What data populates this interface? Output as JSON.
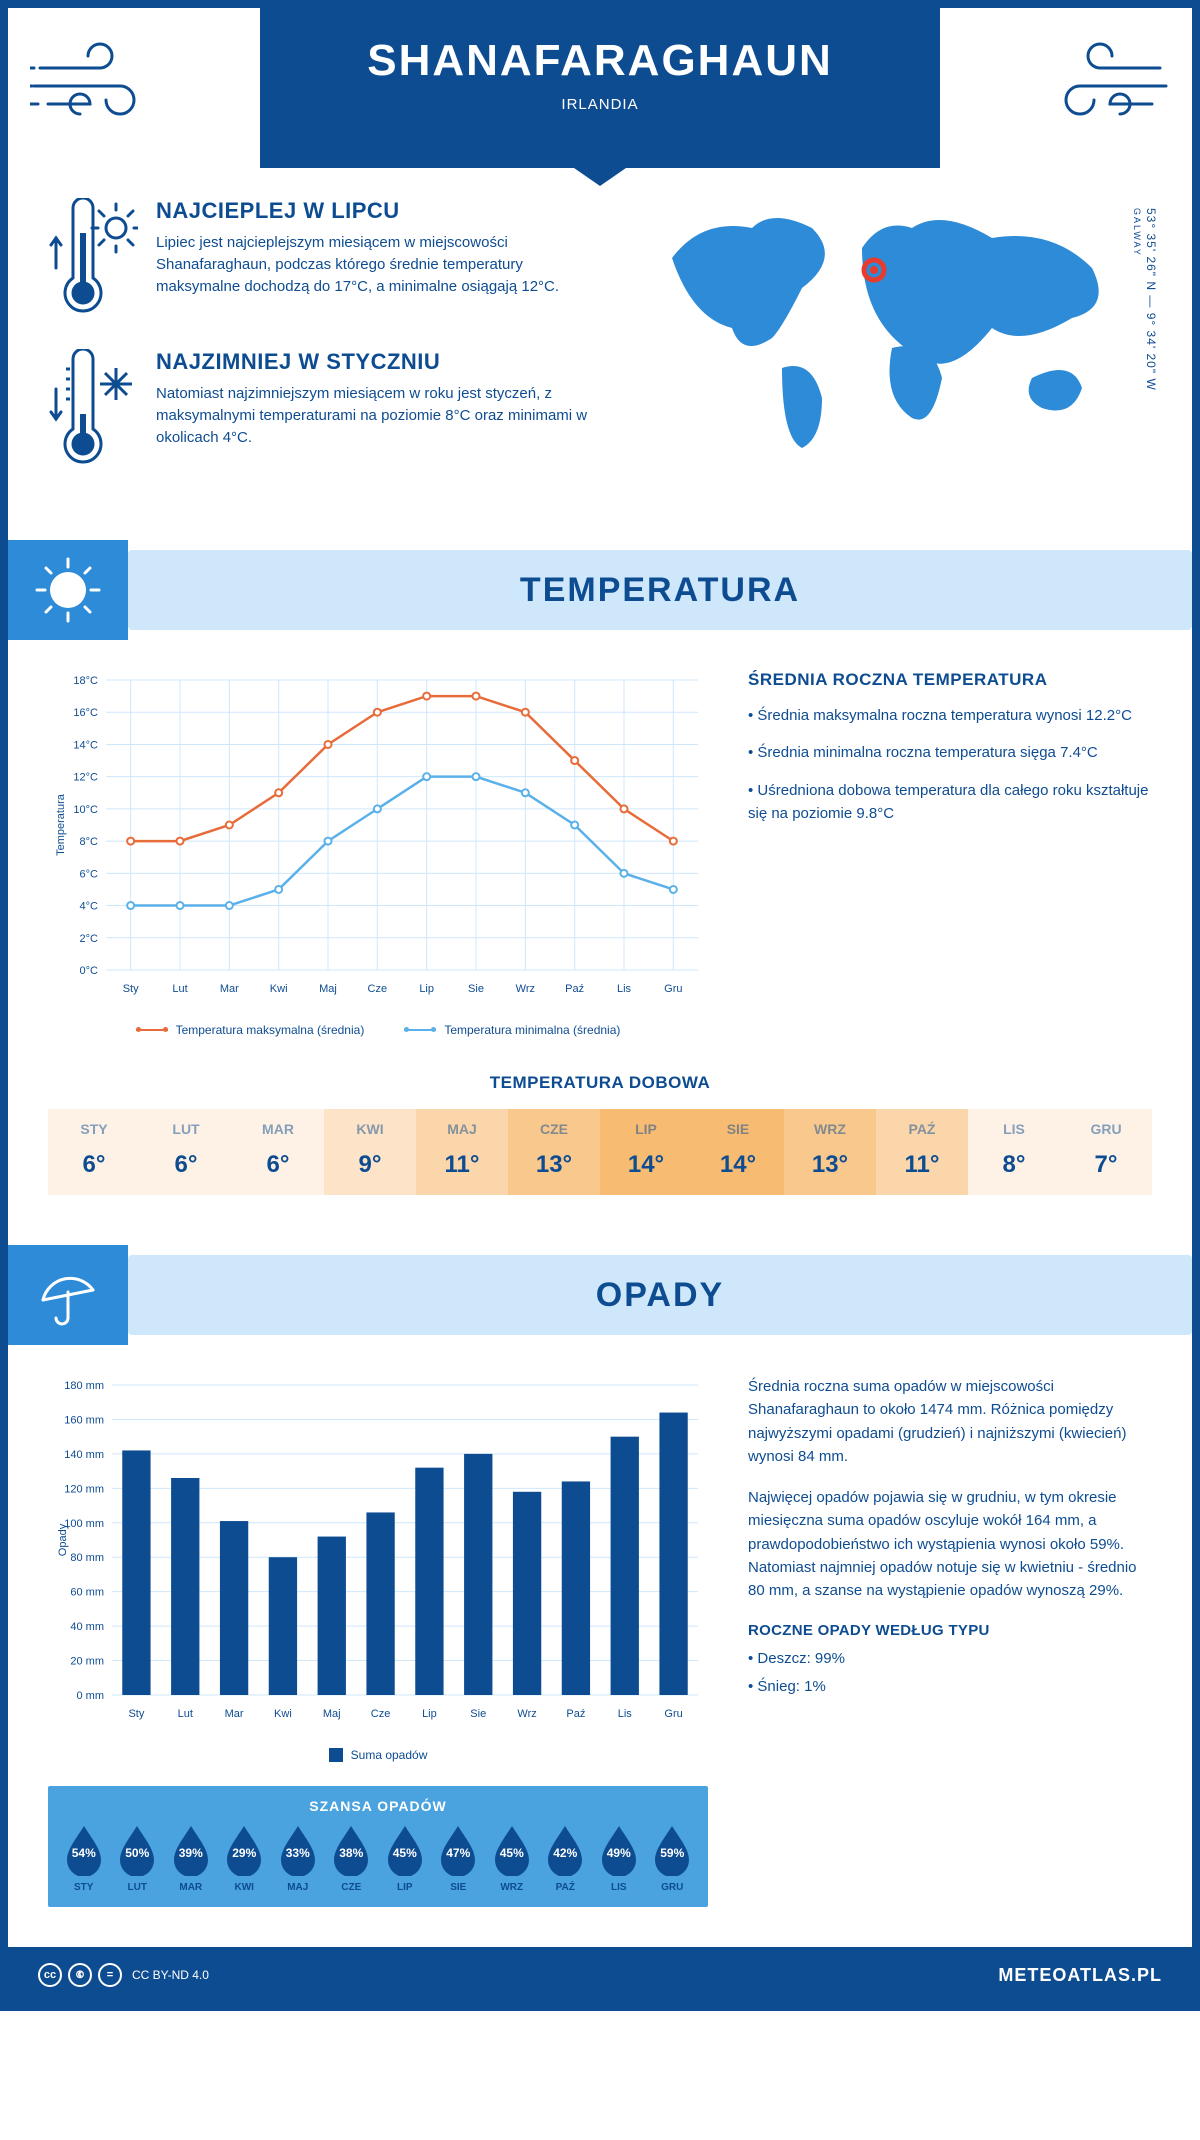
{
  "header": {
    "city": "SHANAFARAGHAUN",
    "country": "IRLANDIA",
    "coords": "53° 35' 26\" N — 9° 34' 20\" W",
    "region": "GALWAY"
  },
  "facts": {
    "warm": {
      "title": "NAJCIEPLEJ W LIPCU",
      "text": "Lipiec jest najcieplejszym miesiącem w miejscowości Shanafaraghaun, podczas którego średnie temperatury maksymalne dochodzą do 17°C, a minimalne osiągają 12°C."
    },
    "cold": {
      "title": "NAJZIMNIEJ W STYCZNIU",
      "text": "Natomiast najzimniejszym miesiącem w roku jest styczeń, z maksymalnymi temperaturami na poziomie 8°C oraz minimami w okolicach 4°C."
    }
  },
  "months_short": [
    "Sty",
    "Lut",
    "Mar",
    "Kwi",
    "Maj",
    "Cze",
    "Lip",
    "Sie",
    "Wrz",
    "Paź",
    "Lis",
    "Gru"
  ],
  "months_upper": [
    "STY",
    "LUT",
    "MAR",
    "KWI",
    "MAJ",
    "CZE",
    "LIP",
    "SIE",
    "WRZ",
    "PAŹ",
    "LIS",
    "GRU"
  ],
  "temperature_section": {
    "title": "TEMPERATURA",
    "chart": {
      "type": "line",
      "y_axis_label": "Temperatura",
      "ylim": [
        0,
        18
      ],
      "ytick_step": 2,
      "y_unit": "°C",
      "x_labels_key": "months_short",
      "series": [
        {
          "name": "Temperatura maksymalna (średnia)",
          "color": "#e86b3a",
          "values": [
            8,
            8,
            9,
            11,
            14,
            16,
            17,
            17,
            16,
            13,
            10,
            8
          ]
        },
        {
          "name": "Temperatura minimalna (średnia)",
          "color": "#5ab1ea",
          "values": [
            4,
            4,
            4,
            5,
            8,
            10,
            12,
            12,
            11,
            9,
            6,
            5
          ]
        }
      ],
      "grid_color": "#cfe7fb",
      "background_color": "#ffffff"
    },
    "info": {
      "heading": "ŚREDNIA ROCZNA TEMPERATURA",
      "bullets": [
        "Średnia maksymalna roczna temperatura wynosi 12.2°C",
        "Średnia minimalna roczna temperatura sięga 7.4°C",
        "Uśredniona dobowa temperatura dla całego roku kształtuje się na poziomie 9.8°C"
      ]
    },
    "daily": {
      "title": "TEMPERATURA DOBOWA",
      "values": [
        "6°",
        "6°",
        "6°",
        "9°",
        "11°",
        "13°",
        "14°",
        "14°",
        "13°",
        "11°",
        "8°",
        "7°"
      ],
      "cell_colors": [
        "#fdf2e5",
        "#fdf2e5",
        "#fdf2e5",
        "#fde4c8",
        "#fbd6aa",
        "#f9c88d",
        "#f7bb72",
        "#f7bb72",
        "#f9c88d",
        "#fbd6aa",
        "#fdf2e5",
        "#fdf2e5"
      ]
    }
  },
  "precip_section": {
    "title": "OPADY",
    "chart": {
      "type": "bar",
      "y_axis_label": "Opady",
      "ylim": [
        0,
        180
      ],
      "ytick_step": 20,
      "y_unit": " mm",
      "x_labels_key": "months_short",
      "bar_color": "#0e4c92",
      "grid_color": "#cfe7fb",
      "series": {
        "name": "Suma opadów",
        "values": [
          142,
          126,
          101,
          80,
          92,
          106,
          132,
          140,
          118,
          124,
          150,
          164
        ]
      }
    },
    "text1": "Średnia roczna suma opadów w miejscowości Shanafaraghaun to około 1474 mm. Różnica pomiędzy najwyższymi opadami (grudzień) i najniższymi (kwiecień) wynosi 84 mm.",
    "text2": "Najwięcej opadów pojawia się w grudniu, w tym okresie miesięczna suma opadów oscyluje wokół 164 mm, a prawdopodobieństwo ich wystąpienia wynosi około 59%. Natomiast najmniej opadów notuje się w kwietniu - średnio 80 mm, a szanse na wystąpienie opadów wynoszą 29%.",
    "chance": {
      "title": "SZANSA OPADÓW",
      "values": [
        "54%",
        "50%",
        "39%",
        "29%",
        "33%",
        "38%",
        "45%",
        "47%",
        "45%",
        "42%",
        "49%",
        "59%"
      ]
    },
    "by_type": {
      "heading": "ROCZNE OPADY WEDŁUG TYPU",
      "items": [
        "Deszcz: 99%",
        "Śnieg: 1%"
      ]
    }
  },
  "footer": {
    "license": "CC BY-ND 4.0",
    "site": "METEOATLAS.PL"
  },
  "colors": {
    "primary": "#0e4c92",
    "light_blue": "#cfe7fb",
    "mid_blue": "#2e8bd8",
    "accent_blue": "#4aa3df",
    "orange": "#e86b3a",
    "sky_blue": "#5ab1ea"
  }
}
